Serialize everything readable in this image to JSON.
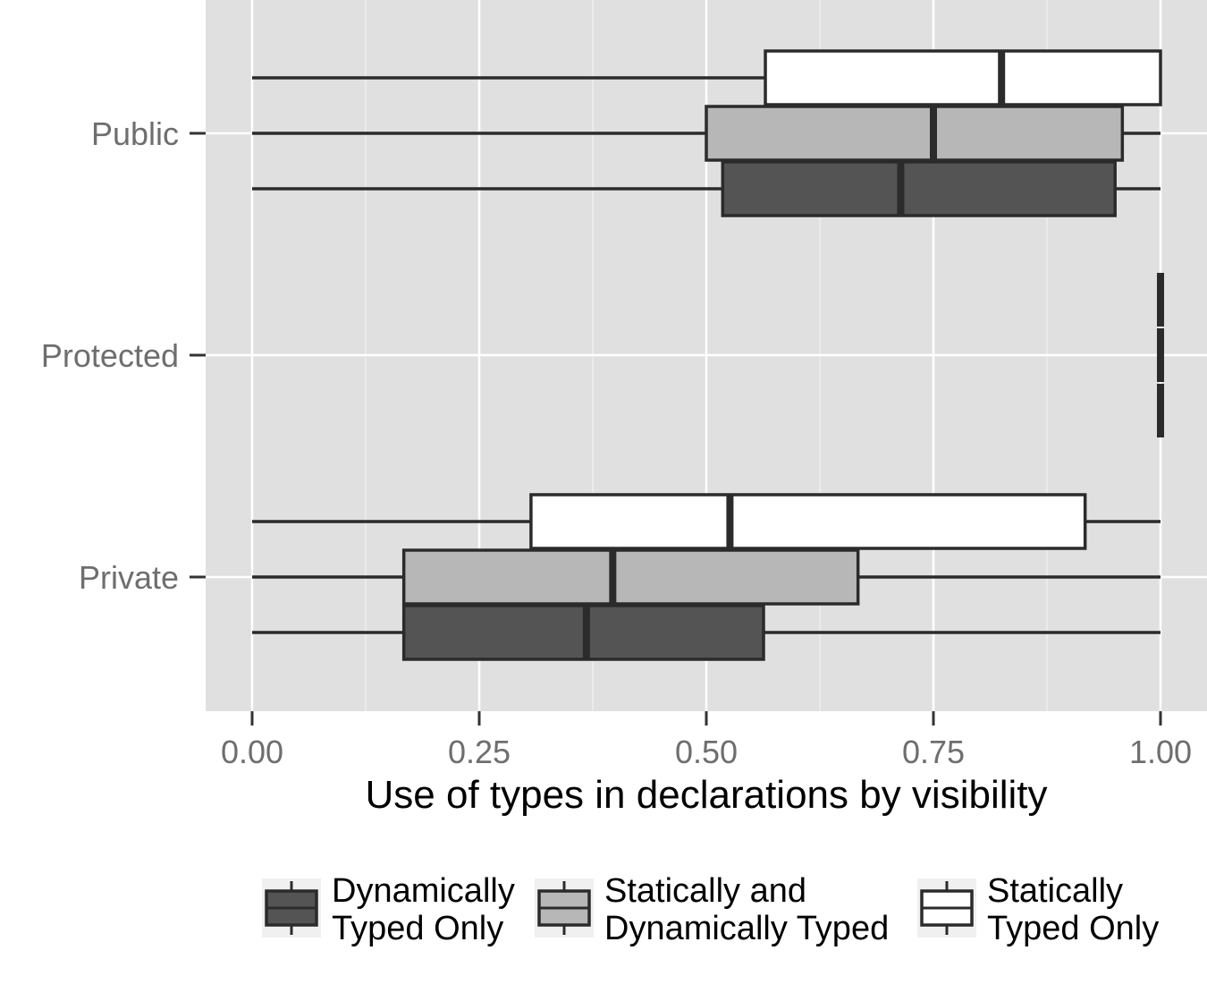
{
  "chart_data": {
    "type": "boxplot",
    "orientation": "horizontal",
    "xlabel": "Use of types in declarations by visibility",
    "xlim": [
      -0.1,
      1.1
    ],
    "x_ticks": [
      "0.00",
      "0.25",
      "0.50",
      "0.75",
      "1.00"
    ],
    "categories": [
      "Public",
      "Protected",
      "Private"
    ],
    "grid": true,
    "legend_position": "bottom",
    "series": [
      {
        "name": "Dynamically Typed Only",
        "color": "#545454",
        "boxes": [
          {
            "category": "Public",
            "min": 0.0,
            "q1": 0.518,
            "median": 0.714,
            "q3": 0.95,
            "max": 1.0
          },
          {
            "category": "Protected",
            "min": 1.0,
            "q1": 1.0,
            "median": 1.0,
            "q3": 1.0,
            "max": 1.0
          },
          {
            "category": "Private",
            "min": 0.0,
            "q1": 0.167,
            "median": 0.368,
            "q3": 0.563,
            "max": 1.0
          }
        ]
      },
      {
        "name": "Statically and Dynamically Typed",
        "color": "#b7b7b7",
        "boxes": [
          {
            "category": "Public",
            "min": 0.0,
            "q1": 0.5,
            "median": 0.75,
            "q3": 0.958,
            "max": 1.0
          },
          {
            "category": "Protected",
            "min": 1.0,
            "q1": 1.0,
            "median": 1.0,
            "q3": 1.0,
            "max": 1.0
          },
          {
            "category": "Private",
            "min": 0.0,
            "q1": 0.167,
            "median": 0.397,
            "q3": 0.667,
            "max": 1.0
          }
        ]
      },
      {
        "name": "Statically Typed Only",
        "color": "#ffffff",
        "boxes": [
          {
            "category": "Public",
            "min": 0.0,
            "q1": 0.565,
            "median": 0.825,
            "q3": 1.0,
            "max": 1.0
          },
          {
            "category": "Protected",
            "min": 1.0,
            "q1": 1.0,
            "median": 1.0,
            "q3": 1.0,
            "max": 1.0
          },
          {
            "category": "Private",
            "min": 0.0,
            "q1": 0.307,
            "median": 0.526,
            "q3": 0.917,
            "max": 1.0
          }
        ]
      }
    ],
    "legend": [
      {
        "line1": "Dynamically",
        "line2": "Typed Only",
        "color": "#545454"
      },
      {
        "line1": "Statically and",
        "line2": "Dynamically Typed",
        "color": "#b7b7b7"
      },
      {
        "line1": "Statically",
        "line2": "Typed Only",
        "color": "#ffffff"
      }
    ],
    "colors": {
      "panel_background": "#e0e0e0",
      "gridline": "#ffffff",
      "box_outline": "#2b2b2b",
      "tick_label": "#6e6e6e"
    }
  }
}
